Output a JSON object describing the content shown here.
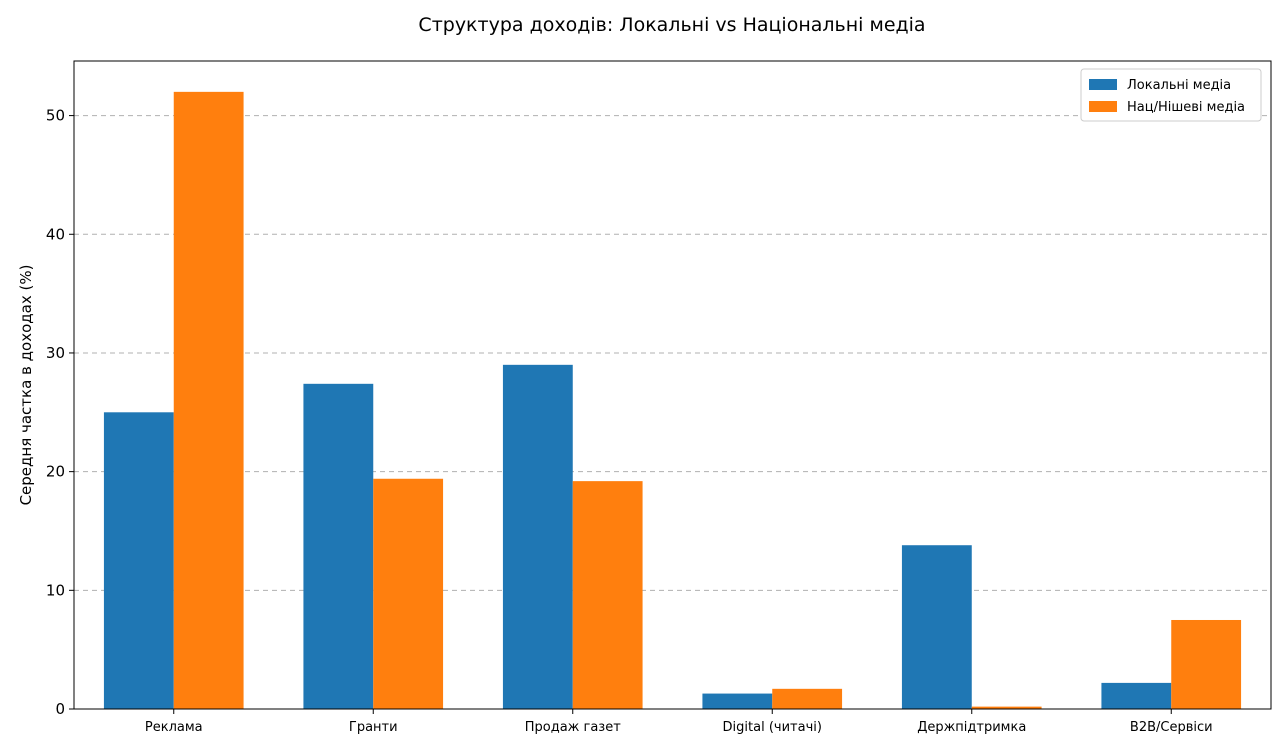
{
  "chart_data": {
    "type": "bar",
    "title": "Структура доходів: Локальні vs Національні медіа",
    "xlabel": "",
    "ylabel": "Середня частка в доходах (%)",
    "categories": [
      "Реклама",
      "Гранти",
      "Продаж газет",
      "Digital (читачі)",
      "Держпідтримка",
      "B2B/Сервіси"
    ],
    "series": [
      {
        "name": "Локальні медіа",
        "color": "#1f77b4",
        "values": [
          25.0,
          27.4,
          29.0,
          1.3,
          13.8,
          2.2
        ]
      },
      {
        "name": "Нац/Нішеві медіа",
        "color": "#ff7f0e",
        "values": [
          52.0,
          19.4,
          19.2,
          1.7,
          0.2,
          7.5
        ]
      }
    ],
    "yticks": [
      0,
      10,
      20,
      30,
      40,
      50
    ],
    "ylim": [
      0,
      54.6
    ],
    "grid": "y-dashed",
    "legend": "top-right"
  }
}
